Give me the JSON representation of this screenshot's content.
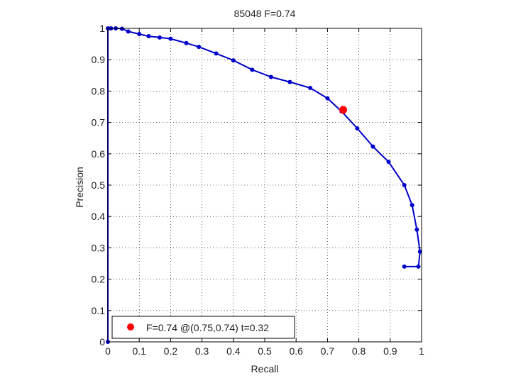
{
  "chart_data": {
    "type": "line",
    "title": "85048 F=0.74",
    "xlabel": "Recall",
    "ylabel": "Precision",
    "xlim": [
      0,
      1
    ],
    "ylim": [
      0,
      1
    ],
    "xticks": [
      0,
      0.1,
      0.2,
      0.3,
      0.4,
      0.5,
      0.6,
      0.7,
      0.8,
      0.9,
      1
    ],
    "yticks": [
      0,
      0.1,
      0.2,
      0.3,
      0.4,
      0.5,
      0.6,
      0.7,
      0.8,
      0.9,
      1
    ],
    "xtick_labels": [
      "0",
      "0.1",
      "0.2",
      "0.3",
      "0.4",
      "0.5",
      "0.6",
      "0.7",
      "0.8",
      "0.9",
      "1"
    ],
    "ytick_labels": [
      "0",
      "0.1",
      "0.2",
      "0.3",
      "0.4",
      "0.5",
      "0.6",
      "0.7",
      "0.8",
      "0.9",
      "1"
    ],
    "grid": true,
    "grid_style": "dotted",
    "series": [
      {
        "color": "#0000cc",
        "marker": "dot",
        "points": [
          [
            0,
            0
          ],
          [
            0,
            1
          ],
          [
            0.01,
            1
          ],
          [
            0.025,
            1
          ],
          [
            0.045,
            0.999
          ],
          [
            0.065,
            0.99
          ],
          [
            0.1,
            0.982
          ],
          [
            0.13,
            0.975
          ],
          [
            0.165,
            0.971
          ],
          [
            0.2,
            0.967
          ],
          [
            0.25,
            0.953
          ],
          [
            0.29,
            0.941
          ],
          [
            0.345,
            0.92
          ],
          [
            0.4,
            0.898
          ],
          [
            0.46,
            0.868
          ],
          [
            0.52,
            0.845
          ],
          [
            0.58,
            0.829
          ],
          [
            0.645,
            0.81
          ],
          [
            0.7,
            0.777
          ],
          [
            0.745,
            0.735
          ],
          [
            0.795,
            0.681
          ],
          [
            0.845,
            0.623
          ],
          [
            0.895,
            0.574
          ],
          [
            0.945,
            0.5
          ],
          [
            0.97,
            0.436
          ],
          [
            0.985,
            0.358
          ],
          [
            0.995,
            0.288
          ],
          [
            0.99,
            0.24
          ],
          [
            0.945,
            0.24
          ]
        ]
      }
    ],
    "highlight": {
      "x": 0.75,
      "y": 0.74,
      "color": "#ff0000",
      "label": "F=0.74 @(0.75,0.74) t=0.32"
    },
    "legend": {
      "position": "bottom-left",
      "text": "F=0.74 @(0.75,0.74) t=0.32"
    }
  }
}
